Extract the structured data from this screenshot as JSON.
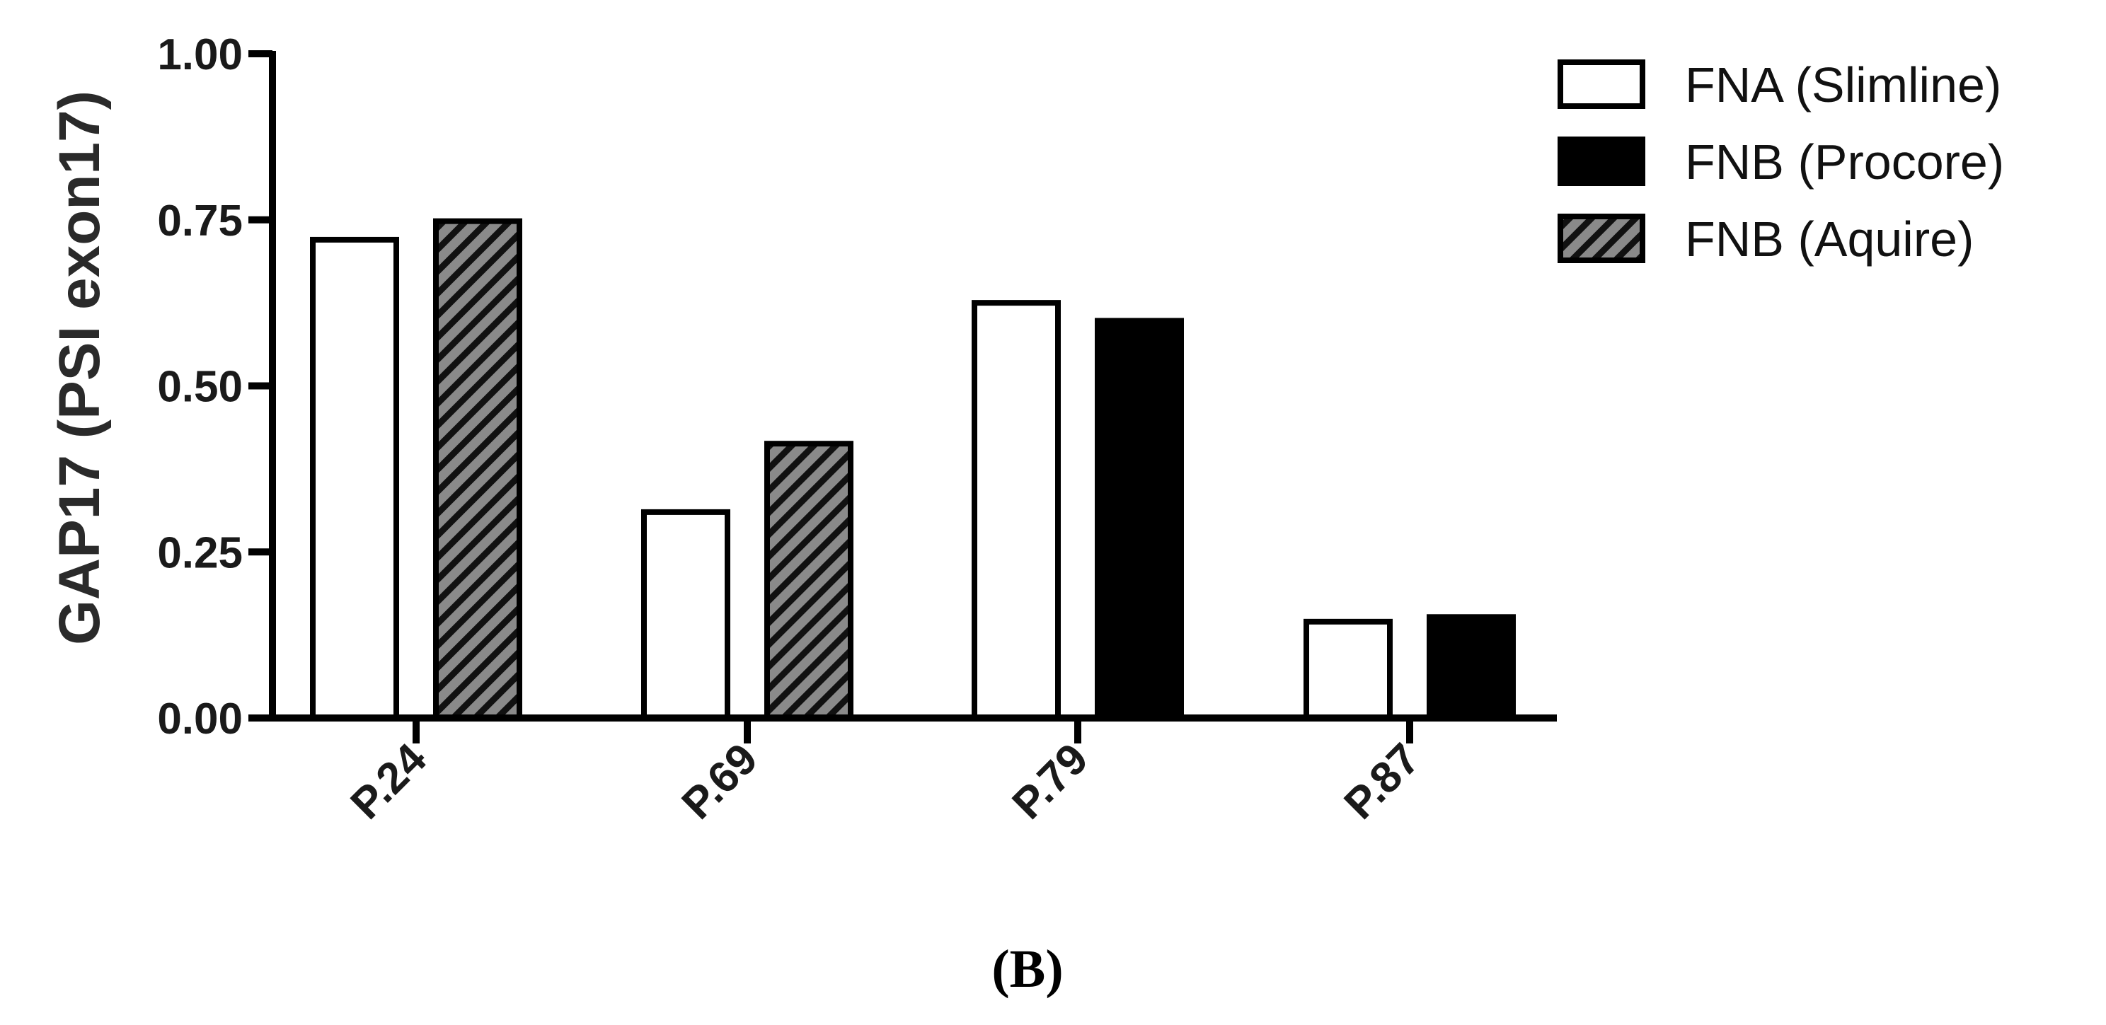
{
  "figure": {
    "panel_label": "(B)"
  },
  "chart_data": {
    "type": "bar",
    "title": "",
    "xlabel": "",
    "ylabel": "GAP17 (PSI exon17)",
    "ylim": [
      0,
      1
    ],
    "yticks": [
      0,
      0.25,
      0.5,
      0.75,
      1
    ],
    "ytick_labels": [
      "0.00",
      "0.25",
      "0.50",
      "0.75",
      "1.00"
    ],
    "categories": [
      "P.24",
      "P.69",
      "P.79",
      "P.87"
    ],
    "legend_position": "top-right",
    "series": [
      {
        "name": "FNA (Slimline)",
        "fill": "#ffffff",
        "pattern": "none",
        "values": [
          0.72,
          0.31,
          0.625,
          0.145
        ]
      },
      {
        "name": "FNB (Procore)",
        "fill": "#000000",
        "pattern": "none",
        "values": [
          null,
          null,
          0.598,
          0.152
        ]
      },
      {
        "name": "FNB (Aquire)",
        "fill": "#808080",
        "pattern": "diagonal-hatch",
        "values": [
          0.748,
          0.413,
          null,
          null
        ]
      }
    ],
    "bar_order": [
      [
        "FNA (Slimline)",
        "FNB (Aquire)"
      ],
      [
        "FNA (Slimline)",
        "FNB (Aquire)"
      ],
      [
        "FNA (Slimline)",
        "FNB (Procore)"
      ],
      [
        "FNA (Slimline)",
        "FNB (Procore)"
      ]
    ],
    "grid": false
  }
}
